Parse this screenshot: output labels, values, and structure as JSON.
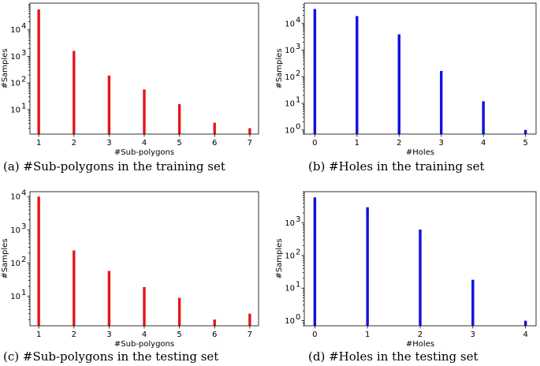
{
  "chart_data": [
    {
      "type": "bar",
      "x": [
        1,
        2,
        3,
        4,
        5,
        6,
        7
      ],
      "values": [
        58000,
        1600,
        190,
        57,
        16,
        3.2,
        2
      ],
      "color": "#e8141b",
      "xlabel": "#Sub-polygons",
      "ylabel": "#Samples",
      "yscale": "log",
      "ylim": [
        1.2,
        100000
      ],
      "yticks": [
        10,
        100,
        1000,
        10000
      ],
      "ytick_labels": [
        [
          "10",
          "1"
        ],
        [
          "10",
          "2"
        ],
        [
          "10",
          "3"
        ],
        [
          "10",
          "4"
        ]
      ],
      "xlim": [
        0.75,
        7.25
      ],
      "caption": "(a) #Sub-polygons in the training set"
    },
    {
      "type": "bar",
      "x": [
        0,
        1,
        2,
        3,
        4,
        5
      ],
      "values": [
        35000,
        19000,
        3900,
        165,
        12,
        1
      ],
      "color": "#1010e0",
      "xlabel": "#Holes",
      "ylabel": "#Samples",
      "yscale": "log",
      "ylim": [
        0.7,
        58000
      ],
      "yticks": [
        1,
        10,
        100,
        1000,
        10000
      ],
      "ytick_labels": [
        [
          "10",
          "0"
        ],
        [
          "10",
          "1"
        ],
        [
          "10",
          "2"
        ],
        [
          "10",
          "3"
        ],
        [
          "10",
          "4"
        ]
      ],
      "xlim": [
        -0.25,
        5.25
      ],
      "caption": "(b) #Holes in the training set"
    },
    {
      "type": "bar",
      "x": [
        1,
        2,
        3,
        4,
        5,
        6,
        7
      ],
      "values": [
        10000,
        240,
        58,
        19,
        9,
        2,
        3
      ],
      "color": "#e8141b",
      "xlabel": "#Sub-polygons",
      "ylabel": "#Samples",
      "yscale": "log",
      "ylim": [
        1.3,
        14000
      ],
      "yticks": [
        10,
        100,
        1000,
        10000
      ],
      "ytick_labels": [
        [
          "10",
          "1"
        ],
        [
          "10",
          "2"
        ],
        [
          "10",
          "3"
        ],
        [
          "10",
          "4"
        ]
      ],
      "xlim": [
        0.75,
        7.25
      ],
      "caption": "(c) #Sub-polygons in the testing set"
    },
    {
      "type": "bar",
      "x": [
        0,
        1,
        2,
        3,
        4
      ],
      "values": [
        6000,
        3000,
        620,
        18,
        1
      ],
      "color": "#1010e0",
      "xlabel": "#Holes",
      "ylabel": "#Samples",
      "yscale": "log",
      "ylim": [
        0.7,
        9000
      ],
      "yticks": [
        1,
        10,
        100,
        1000
      ],
      "ytick_labels": [
        [
          "10",
          "0"
        ],
        [
          "10",
          "1"
        ],
        [
          "10",
          "2"
        ],
        [
          "10",
          "3"
        ]
      ],
      "xlim": [
        -0.2,
        4.2
      ],
      "caption": "(d) #Holes in the testing set"
    }
  ]
}
